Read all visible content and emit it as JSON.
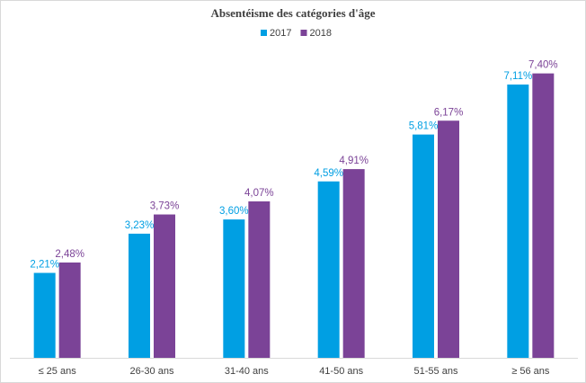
{
  "chart_data": {
    "type": "bar",
    "title": "Absentéisme des catégories d'âge",
    "categories": [
      "≤ 25 ans",
      "26-30 ans",
      "31-40 ans",
      "41-50 ans",
      "51-55 ans",
      "≥ 56 ans"
    ],
    "series": [
      {
        "name": "2017",
        "color": "#009fe3",
        "values": [
          2.21,
          3.23,
          3.6,
          4.59,
          5.81,
          7.11
        ],
        "value_labels": [
          "2,21%",
          "3,23%",
          "3,60%",
          "4,59%",
          "5,81%",
          "7,11%"
        ]
      },
      {
        "name": "2018",
        "color": "#7b4397",
        "values": [
          2.48,
          3.73,
          4.07,
          4.91,
          6.17,
          7.4
        ],
        "value_labels": [
          "2,48%",
          "3,73%",
          "4,07%",
          "4,91%",
          "6,17%",
          "7,40%"
        ]
      }
    ],
    "ylim": [
      0,
      8
    ],
    "legend": "top"
  }
}
